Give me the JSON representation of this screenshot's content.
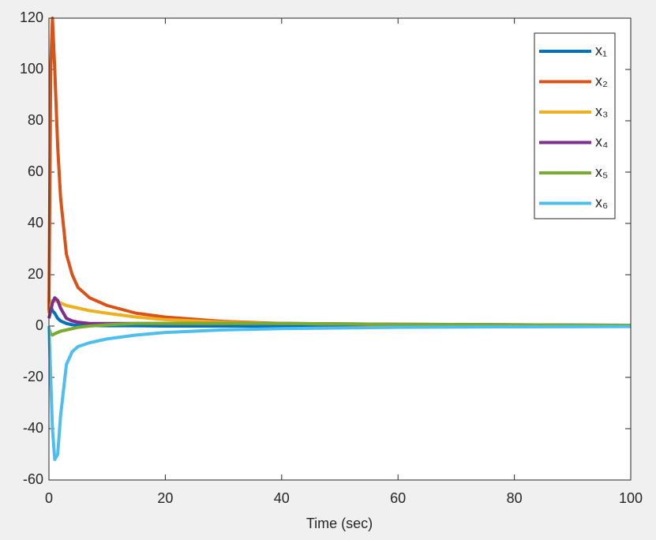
{
  "chart_data": {
    "type": "line",
    "xlabel": "Time (sec)",
    "x": [
      0,
      0.3,
      0.6,
      1,
      1.5,
      2,
      3,
      4,
      5,
      7,
      10,
      15,
      20,
      30,
      40,
      60,
      80,
      100
    ],
    "series": [
      {
        "name": "x₁",
        "color": "#0072BD",
        "values": [
          10,
          8,
          6,
          5,
          3,
          2,
          1,
          0.5,
          0.3,
          0.2,
          0.1,
          0.1,
          0,
          0,
          0,
          0,
          0,
          0
        ]
      },
      {
        "name": "x₂",
        "color": "#D95319",
        "values": [
          5,
          100,
          120,
          100,
          70,
          50,
          28,
          20,
          15,
          11,
          8,
          5,
          3.5,
          1.8,
          1,
          0.5,
          0.3,
          0.2
        ]
      },
      {
        "name": "x₃",
        "color": "#EDB120",
        "values": [
          5,
          8,
          10,
          10,
          9.5,
          9,
          8,
          7.5,
          7,
          6,
          5,
          3.5,
          2.5,
          1.5,
          1,
          0.6,
          0.4,
          0.3
        ]
      },
      {
        "name": "x₄",
        "color": "#7E2F8E",
        "values": [
          3,
          6,
          9,
          11,
          10,
          7,
          3,
          2,
          1.5,
          1,
          1,
          1,
          1,
          1,
          1,
          0.7,
          0.5,
          0.3
        ]
      },
      {
        "name": "x₅",
        "color": "#77AC30",
        "values": [
          -1,
          -3,
          -3.5,
          -3,
          -2.5,
          -2,
          -1.5,
          -1,
          -0.5,
          0,
          0.5,
          1,
          1,
          1,
          1,
          0.7,
          0.5,
          0.3
        ]
      },
      {
        "name": "x₆",
        "color": "#4DBEEE",
        "values": [
          0,
          -20,
          -40,
          -52,
          -50,
          -35,
          -15,
          -10,
          -8,
          -6.5,
          -5,
          -3.5,
          -2.5,
          -1.5,
          -1,
          -0.5,
          -0.3,
          -0.2
        ]
      }
    ],
    "xlim": [
      0,
      100
    ],
    "xticks": [
      0,
      20,
      40,
      60,
      80,
      100
    ],
    "ylim": [
      -60,
      120
    ],
    "yticks": [
      -60,
      -40,
      -20,
      0,
      20,
      40,
      60,
      80,
      100,
      120
    ],
    "legend": "top-right",
    "grid": false
  }
}
